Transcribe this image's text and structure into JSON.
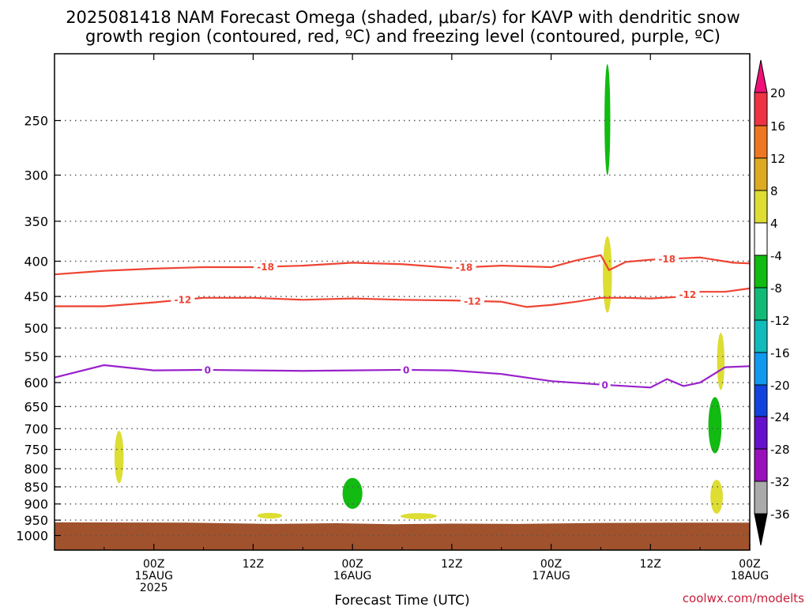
{
  "chart_data": {
    "type": "heatmap",
    "title_lines": [
      "2025081418 NAM Forecast Omega (shaded, μbar/s) for KAVP with dendritic snow",
      "growth region (contoured, red, ºC) and freezing level (contoured, purple, ºC)"
    ],
    "xlabel": "Forecast Time (UTC)",
    "ylabel": "",
    "x_range_hours": [
      -6,
      78
    ],
    "y_range_hpa": [
      1050,
      200
    ],
    "y_scale": "log-pressure",
    "y_ticks": [
      250,
      300,
      350,
      400,
      450,
      500,
      550,
      600,
      650,
      700,
      750,
      800,
      850,
      900,
      950,
      1000
    ],
    "x_ticks": [
      {
        "hour": 6,
        "lines": [
          "00Z",
          "15AUG",
          "2025"
        ]
      },
      {
        "hour": 18,
        "lines": [
          "12Z"
        ]
      },
      {
        "hour": 30,
        "lines": [
          "00Z",
          "16AUG"
        ]
      },
      {
        "hour": 42,
        "lines": [
          "12Z"
        ]
      },
      {
        "hour": 54,
        "lines": [
          "00Z",
          "17AUG"
        ]
      },
      {
        "hour": 66,
        "lines": [
          "12Z"
        ]
      },
      {
        "hour": 78,
        "lines": [
          "00Z",
          "18AUG"
        ]
      }
    ],
    "grid": true,
    "colorbar": {
      "labels": [
        "20",
        "16",
        "12",
        "8",
        "4",
        "-4",
        "-8",
        "-12",
        "-16",
        "-20",
        "-24",
        "-28",
        "-32",
        "-36"
      ],
      "colors": [
        "#ee3344",
        "#ee7722",
        "#ddaa22",
        "#dddd33",
        "#ffffff",
        "#11bb11",
        "#11bb77",
        "#11bbbb",
        "#1199ee",
        "#1144dd",
        "#6611cc",
        "#9911bb",
        "#aaaaaa"
      ],
      "top_arrow_color": "#ee1177",
      "bottom_arrow_color": "#000000"
    },
    "ground_color": "#a0522d",
    "omega_blobs": [
      {
        "x": 1.8,
        "p_top": 705,
        "p_bot": 840,
        "half_width_h": 0.55,
        "color": "#dddd33"
      },
      {
        "x": 30.0,
        "p_top": 825,
        "p_bot": 915,
        "half_width_h": 1.2,
        "color": "#11bb11"
      },
      {
        "x": 20.0,
        "p_top": 927,
        "p_bot": 945,
        "half_width_h": 1.5,
        "color": "#dddd33"
      },
      {
        "x": 38.0,
        "p_top": 928,
        "p_bot": 947,
        "half_width_h": 2.2,
        "color": "#dddd33"
      },
      {
        "x": 60.8,
        "p_top": 207,
        "p_bot": 300,
        "half_width_h": 0.35,
        "color": "#11bb11"
      },
      {
        "x": 60.8,
        "p_top": 368,
        "p_bot": 475,
        "half_width_h": 0.55,
        "color": "#dddd33"
      },
      {
        "x": 74.5,
        "p_top": 508,
        "p_bot": 615,
        "half_width_h": 0.45,
        "color": "#dddd33"
      },
      {
        "x": 73.8,
        "p_top": 630,
        "p_bot": 760,
        "half_width_h": 0.8,
        "color": "#11bb11"
      },
      {
        "x": 74.0,
        "p_top": 830,
        "p_bot": 930,
        "half_width_h": 0.75,
        "color": "#dddd33"
      }
    ],
    "series": [
      {
        "name": "-18",
        "color": "#ee4433",
        "label_at_x": [
          19.5,
          43.5,
          68.0
        ],
        "x": [
          -6,
          0,
          6,
          12,
          18,
          24,
          30,
          36,
          42,
          48,
          54,
          57,
          60,
          61,
          63,
          66,
          70,
          72,
          76,
          78
        ],
        "y": [
          418,
          413,
          410,
          408,
          408,
          406,
          402,
          404,
          409,
          406,
          408,
          399,
          392,
          412,
          401,
          398,
          396,
          395,
          402,
          403
        ]
      },
      {
        "name": "-12",
        "color": "#ee4433",
        "label_at_x": [
          9.5,
          44.5,
          70.5
        ],
        "x": [
          -6,
          0,
          6,
          12,
          18,
          24,
          30,
          36,
          42,
          48,
          51,
          54,
          57,
          60,
          63,
          66,
          69,
          72,
          75,
          78
        ],
        "y": [
          465,
          465,
          459,
          452,
          452,
          455,
          453,
          455,
          456,
          458,
          466,
          463,
          458,
          452,
          452,
          453,
          451,
          443,
          443,
          438
        ]
      },
      {
        "name": "0",
        "color": "#9922cc",
        "label_at_x": [
          12.5,
          36.5,
          60.5
        ],
        "x": [
          -6,
          0,
          6,
          12,
          18,
          24,
          30,
          36,
          42,
          48,
          54,
          60,
          66,
          68,
          70,
          72,
          75,
          78
        ],
        "y": [
          590,
          566,
          576,
          575,
          576,
          577,
          576,
          575,
          576,
          583,
          597,
          604,
          610,
          593,
          607,
          600,
          570,
          568
        ]
      }
    ]
  },
  "credit": "coolwx.com/modelts"
}
